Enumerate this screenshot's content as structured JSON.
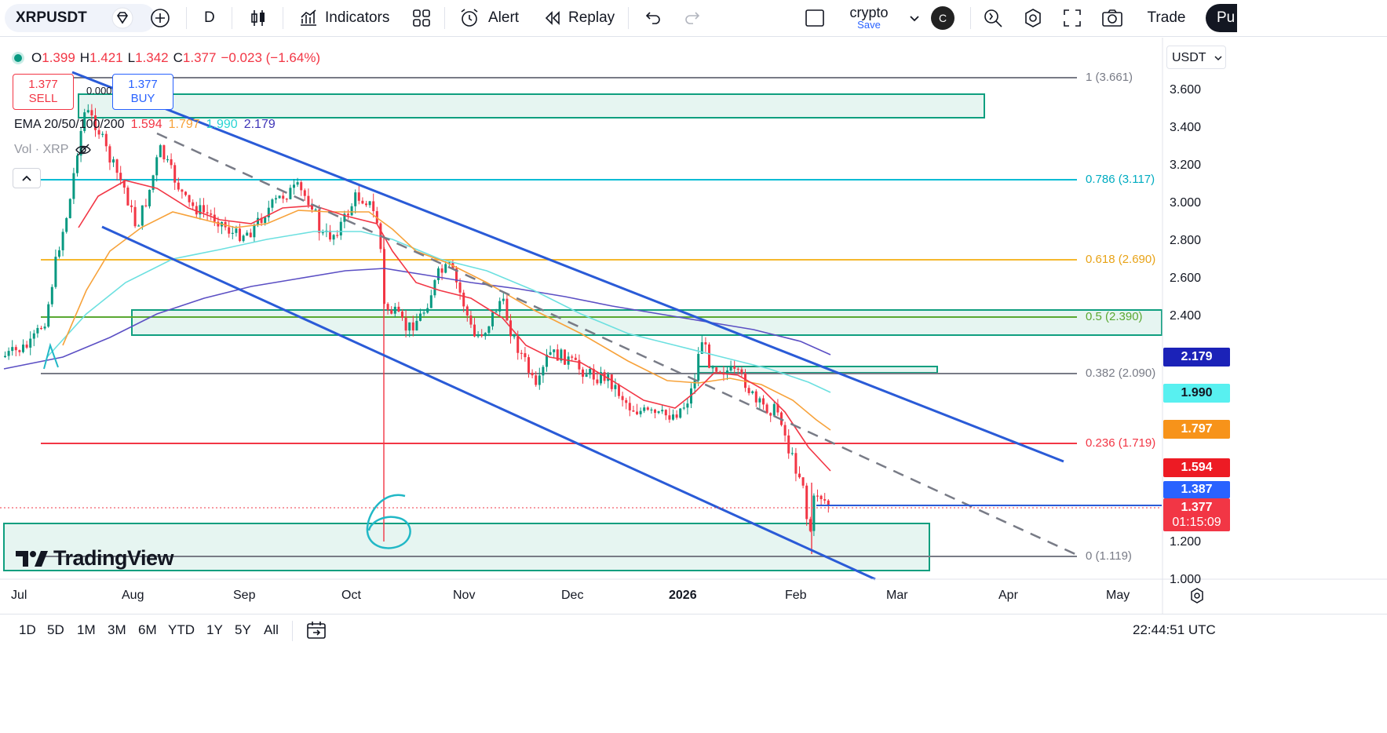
{
  "toolbar": {
    "symbol": "XRPUSDT",
    "interval": "D",
    "indicators_label": "Indicators",
    "alert_label": "Alert",
    "replay_label": "Replay",
    "layout_name": "crypto",
    "layout_sub": "Save",
    "avatar_letter": "C",
    "trade_label": "Trade",
    "publish_label": "Pu"
  },
  "ohlc": {
    "o_label": "O",
    "o": "1.399",
    "h_label": "H",
    "h": "1.421",
    "l_label": "L",
    "l": "1.342",
    "c_label": "C",
    "c": "1.377",
    "change": "−0.023 (−1.64%)"
  },
  "trade": {
    "sell_price": "1.377",
    "sell_label": "SELL",
    "buy_price": "1.377",
    "buy_label": "BUY",
    "spread": "0.000"
  },
  "legend": {
    "ema_label": "EMA 20/50/100/200",
    "ema20": "1.594",
    "ema50": "1.797",
    "ema100": "1.990",
    "ema200": "2.179",
    "vol_label": "Vol · XRP"
  },
  "currency": "USDT",
  "price_axis": [
    "3.600",
    "3.400",
    "3.200",
    "3.000",
    "2.800",
    "2.600",
    "2.400",
    "1.200",
    "1.000"
  ],
  "price_tags": {
    "ema200": "2.179",
    "ema100": "1.990",
    "ema50": "1.797",
    "ema20": "1.594",
    "high_tag": "1.387",
    "last": "1.377",
    "countdown": "01:15:09"
  },
  "fib": {
    "f1": "1 (3.661)",
    "f786": "0.786 (3.117)",
    "f618": "0.618 (2.690)",
    "f5": "0.5 (2.390)",
    "f382": "0.382 (2.090)",
    "f236": "0.236 (1.719)",
    "f0": "0 (1.119)"
  },
  "time_axis": [
    "Jul",
    "Aug",
    "Sep",
    "Oct",
    "Nov",
    "Dec",
    "2026",
    "Feb",
    "Mar",
    "Apr",
    "May"
  ],
  "ranges": [
    "1D",
    "5D",
    "1M",
    "3M",
    "6M",
    "YTD",
    "1Y",
    "5Y",
    "All"
  ],
  "clock": "22:44:51 UTC",
  "watermark": "TradingView",
  "colors": {
    "up": "#089981",
    "down": "#f23645",
    "ema20": "#f23645",
    "ema50": "#f7a23a",
    "ema100": "#6ce0e0",
    "ema200": "#5b4fc4",
    "channel": "#2a5bd7",
    "zone": "#0f9f7f"
  }
}
